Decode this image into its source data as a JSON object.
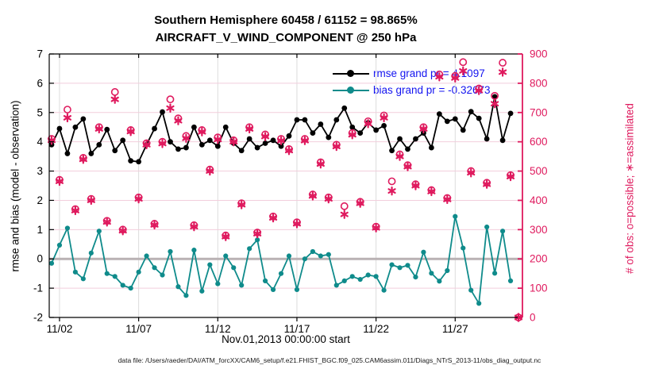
{
  "chart_data": {
    "type": "line",
    "title_line1": "Southern Hemisphere 60458 / 61152 = 98.865%",
    "title_line2": "AIRCRAFT_V_WIND_COMPONENT @ 250 hPa",
    "xlabel": "Nov.01,2013 00:00:00 start",
    "ylabel_left": "rmse and bias (model - observation)",
    "ylabel_right": "# of obs: o=possible; ∗=assimilated",
    "footer": "data file: /Users/raeder/DAI/ATM_forcXX/CAM6_setup/f.e21.FHIST_BGC.f09_025.CAM6assim.011/Diags_NTrS_2013-11/obs_diag_output.nc",
    "legend_text_color": "#1414F0",
    "x_axis": {
      "range_days": [
        0.35,
        30.25
      ],
      "tick_positions_days": [
        1,
        6,
        11,
        16,
        21,
        26
      ],
      "tick_labels": [
        "11/02",
        "11/07",
        "11/12",
        "11/17",
        "11/22",
        "11/27"
      ]
    },
    "left_axis": {
      "min": -2,
      "max": 7,
      "tick_step": 1,
      "color": "#000000"
    },
    "right_axis": {
      "min": 0,
      "max": 900,
      "tick_step": 100,
      "color": "#DF1A5E"
    },
    "grid": {
      "vertical_color": "#DCDCDC",
      "horizontal_color": "#F2CEDC"
    },
    "zero_line": {
      "value": 0,
      "color": "#B9B2B4"
    },
    "x_days": [
      0.5,
      1,
      1.5,
      2,
      2.5,
      3,
      3.5,
      4,
      4.5,
      5,
      5.5,
      6,
      6.5,
      7,
      7.5,
      8,
      8.5,
      9,
      9.5,
      10,
      10.5,
      11,
      11.5,
      12,
      12.5,
      13,
      13.5,
      14,
      14.5,
      15,
      15.5,
      16,
      16.5,
      17,
      17.5,
      18,
      18.5,
      19,
      19.5,
      20,
      20.5,
      21,
      21.5,
      22,
      22.5,
      23,
      23.5,
      24,
      24.5,
      25,
      25.5,
      26,
      26.5,
      27,
      27.5,
      28,
      28.5,
      29,
      29.5,
      30
    ],
    "series": [
      {
        "name": "rmse",
        "legend_label": "rmse grand pr = 4.1097",
        "grand_value": 4.1097,
        "color": "#000000",
        "marker": "filled-circle",
        "axis": "left",
        "values": [
          3.9,
          4.45,
          3.6,
          4.5,
          4.78,
          3.6,
          3.9,
          4.42,
          3.7,
          4.05,
          3.35,
          3.32,
          3.9,
          4.45,
          5.02,
          4.0,
          3.75,
          3.8,
          4.5,
          3.9,
          4.05,
          3.85,
          4.5,
          3.95,
          3.7,
          4.1,
          3.8,
          3.95,
          4.05,
          3.85,
          4.2,
          4.75,
          4.75,
          4.3,
          4.6,
          4.15,
          4.75,
          5.15,
          4.5,
          4.3,
          4.65,
          4.4,
          4.55,
          3.7,
          4.1,
          3.75,
          4.1,
          4.3,
          3.8,
          4.95,
          4.7,
          4.78,
          4.4,
          5.03,
          4.8,
          4.1,
          5.54,
          4.05,
          4.97,
          null
        ]
      },
      {
        "name": "bias",
        "legend_label": "bias grand pr = -0.32673",
        "grand_value": -0.32673,
        "color": "#0F8B8B",
        "marker": "filled-circle",
        "axis": "left",
        "values": [
          -0.15,
          0.47,
          1.05,
          -0.45,
          -0.68,
          0.2,
          0.95,
          -0.5,
          -0.6,
          -0.9,
          -1.0,
          -0.45,
          0.1,
          -0.3,
          -0.55,
          0.25,
          -0.95,
          -1.25,
          0.3,
          -1.1,
          -0.2,
          -0.85,
          0.1,
          -0.3,
          -0.9,
          0.35,
          0.65,
          -0.75,
          -1.05,
          -0.5,
          0.1,
          -1.05,
          0.0,
          0.25,
          0.1,
          0.15,
          -0.9,
          -0.75,
          -0.6,
          -0.7,
          -0.55,
          -0.6,
          -1.07,
          -0.2,
          -0.3,
          -0.22,
          -0.62,
          0.23,
          -0.49,
          -0.76,
          -0.4,
          1.45,
          0.37,
          -1.07,
          -1.52,
          1.09,
          -0.49,
          0.95,
          -0.75,
          null
        ]
      },
      {
        "name": "obs_possible",
        "legend_label": "o=possible",
        "color": "#DF1A5E",
        "marker": "open-circle",
        "axis": "right",
        "values": [
          610,
          470,
          710,
          370,
          545,
          405,
          650,
          330,
          770,
          300,
          640,
          410,
          595,
          320,
          600,
          745,
          680,
          620,
          315,
          640,
          505,
          615,
          280,
          605,
          390,
          650,
          290,
          625,
          345,
          610,
          575,
          325,
          610,
          420,
          530,
          410,
          590,
          380,
          630,
          395,
          670,
          310,
          690,
          465,
          557,
          520,
          455,
          650,
          435,
          830,
          408,
          825,
          872,
          500,
          782,
          460,
          757,
          870,
          486,
          0
        ]
      },
      {
        "name": "obs_assimilated",
        "legend_label": "∗=assimilated",
        "color": "#DF1A5E",
        "marker": "asterisk",
        "axis": "right",
        "values": [
          605,
          465,
          682,
          365,
          540,
          400,
          644,
          326,
          745,
          296,
          635,
          405,
          590,
          316,
          594,
          715,
          672,
          612,
          310,
          634,
          500,
          608,
          276,
          600,
          385,
          644,
          286,
          618,
          340,
          604,
          570,
          320,
          604,
          415,
          524,
          405,
          584,
          352,
          624,
          390,
          662,
          306,
          682,
          432,
          550,
          515,
          450,
          644,
          430,
          822,
          403,
          818,
          842,
          494,
          775,
          455,
          730,
          838,
          481,
          0
        ]
      }
    ]
  }
}
